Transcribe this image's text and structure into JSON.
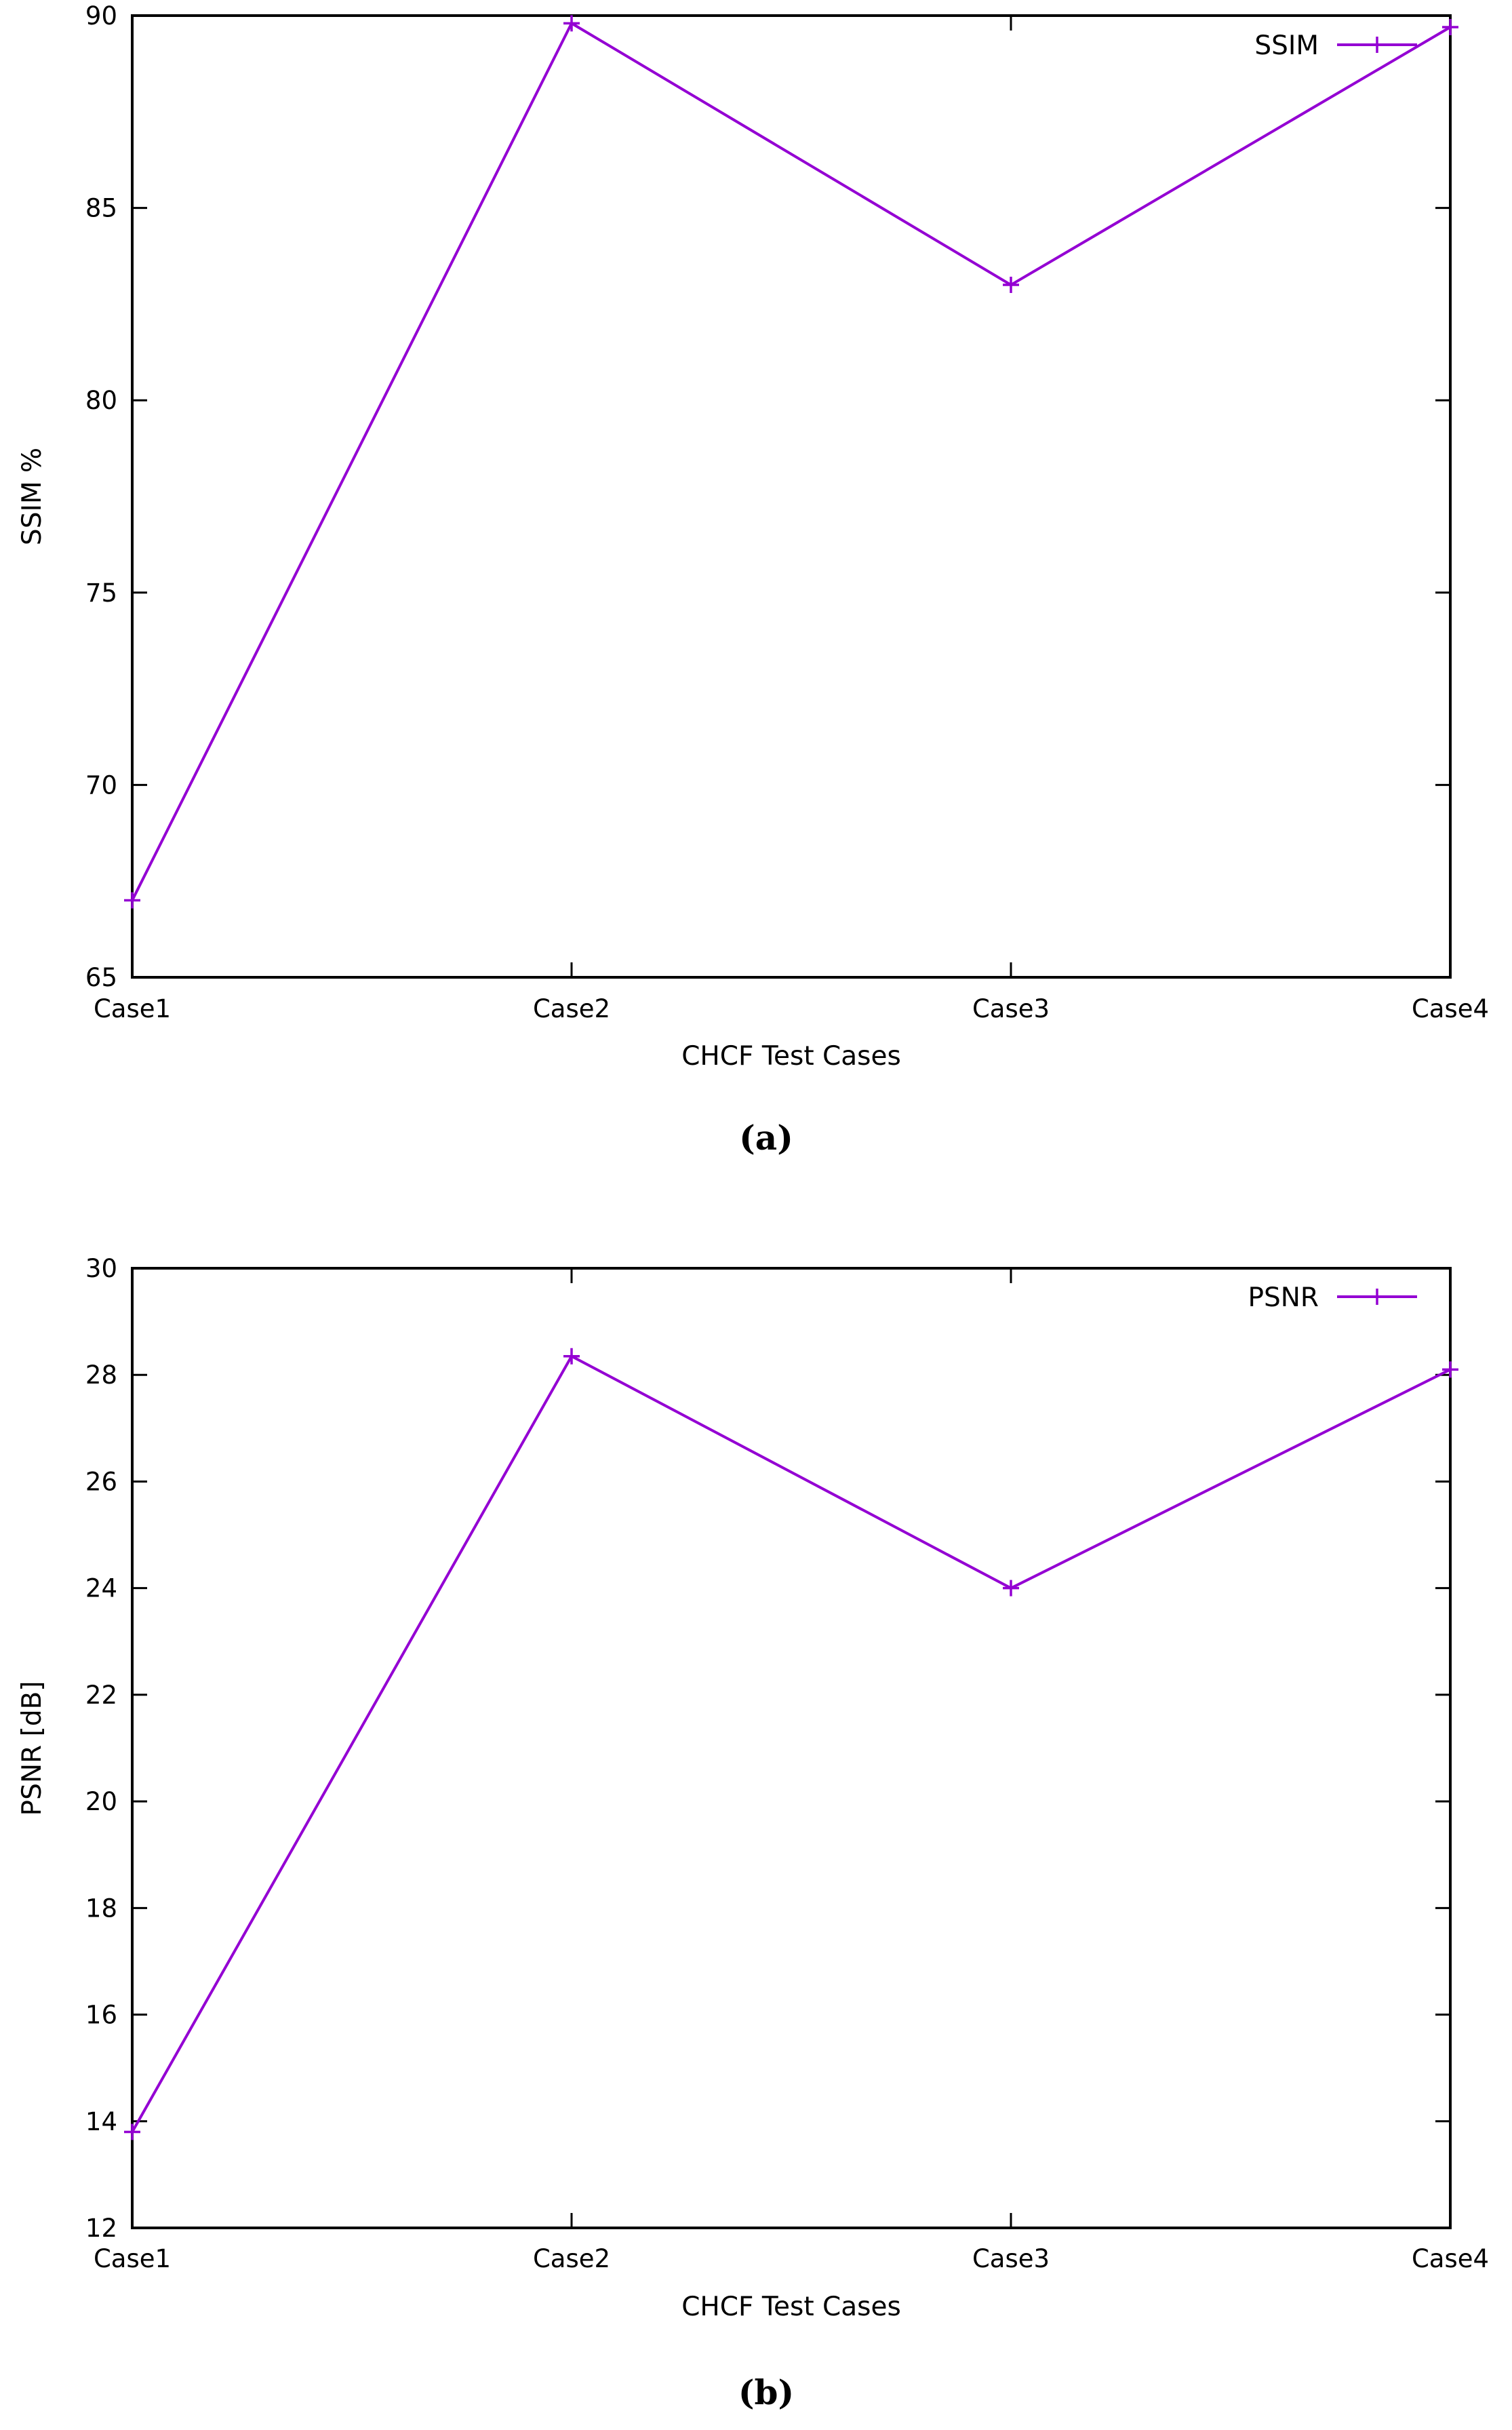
{
  "chart_data": [
    {
      "type": "line",
      "panel_label": "(a)",
      "categories": [
        "Case1",
        "Case2",
        "Case3",
        "Case4"
      ],
      "series": [
        {
          "name": "SSIM",
          "values": [
            67.0,
            89.8,
            83.0,
            89.7
          ],
          "color": "#9400d3"
        }
      ],
      "xlabel": "CHCF Test Cases",
      "ylabel": "SSIM %",
      "ylim": [
        65,
        90
      ],
      "yticks": [
        65,
        70,
        75,
        80,
        85,
        90
      ],
      "legend": "top-right",
      "grid": false
    },
    {
      "type": "line",
      "panel_label": "(b)",
      "categories": [
        "Case1",
        "Case2",
        "Case3",
        "Case4"
      ],
      "series": [
        {
          "name": "PSNR",
          "values": [
            13.8,
            28.35,
            24.0,
            28.1
          ],
          "color": "#9400d3"
        }
      ],
      "xlabel": "CHCF Test Cases",
      "ylabel": "PSNR [dB]",
      "ylim": [
        12,
        30
      ],
      "yticks": [
        12,
        14,
        16,
        18,
        20,
        22,
        24,
        26,
        28,
        30
      ],
      "legend": "top-right",
      "grid": false
    }
  ]
}
